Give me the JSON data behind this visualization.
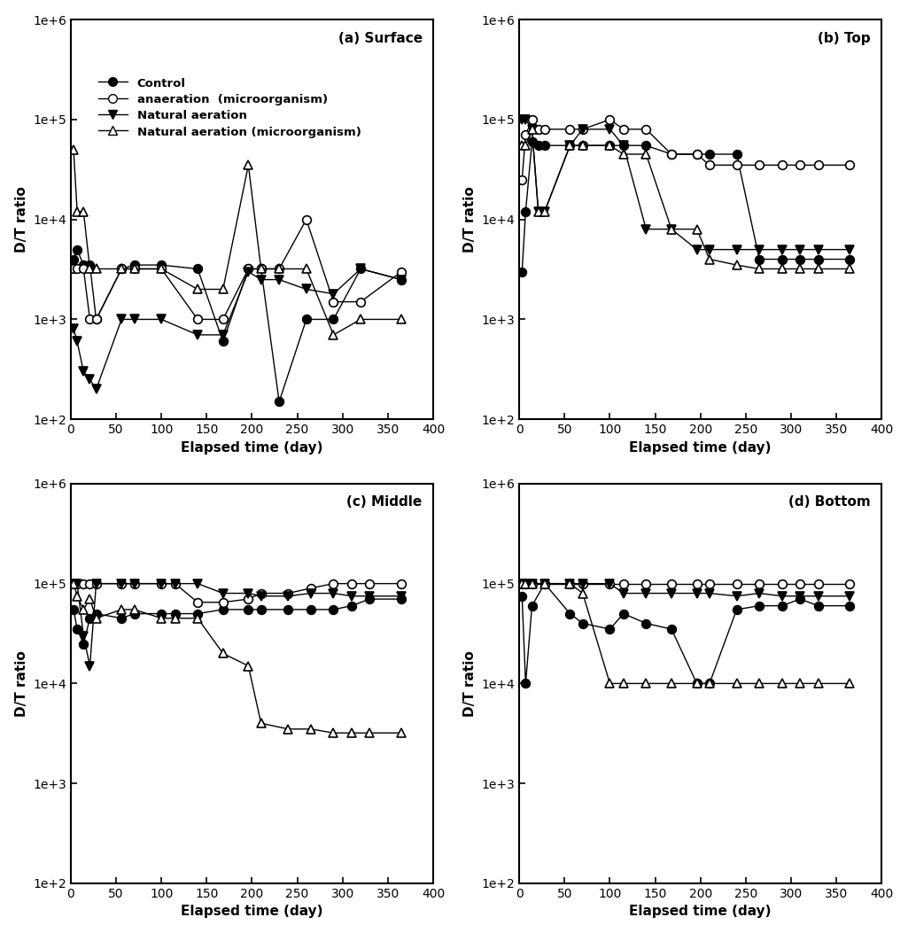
{
  "subplots": [
    {
      "label": "(a) Surface",
      "has_legend": true,
      "control": {
        "x": [
          3,
          7,
          14,
          21,
          28,
          56,
          70,
          100,
          140,
          168,
          196,
          210,
          230,
          260,
          290,
          320,
          365
        ],
        "y": [
          4000,
          5000,
          3500,
          3500,
          1000,
          3200,
          3500,
          3500,
          3200,
          600,
          3200,
          3200,
          150,
          1000,
          1000,
          3200,
          2500
        ]
      },
      "anaeration": {
        "x": [
          3,
          7,
          14,
          21,
          28,
          56,
          70,
          100,
          140,
          168,
          196,
          210,
          230,
          260,
          290,
          320,
          365
        ],
        "y": [
          3200,
          3200,
          3200,
          1000,
          1000,
          3200,
          3200,
          3200,
          1000,
          1000,
          3200,
          3200,
          3200,
          10000,
          1500,
          1500,
          3000
        ]
      },
      "natural": {
        "x": [
          3,
          7,
          14,
          21,
          28,
          56,
          70,
          100,
          140,
          168,
          196,
          210,
          230,
          260,
          290,
          320,
          365
        ],
        "y": [
          800,
          600,
          300,
          250,
          200,
          1000,
          1000,
          1000,
          700,
          700,
          3000,
          2500,
          2500,
          2000,
          1800,
          3200,
          2500
        ]
      },
      "natural_micro": {
        "x": [
          3,
          7,
          14,
          21,
          28,
          56,
          70,
          100,
          140,
          168,
          196,
          210,
          230,
          260,
          290,
          320,
          365
        ],
        "y": [
          50000,
          12000,
          12000,
          3200,
          3200,
          3200,
          3200,
          3200,
          2000,
          2000,
          35000,
          3200,
          3200,
          3200,
          700,
          1000,
          1000
        ]
      }
    },
    {
      "label": "(b) Top",
      "has_legend": false,
      "control": {
        "x": [
          3,
          7,
          14,
          21,
          28,
          56,
          70,
          100,
          115,
          140,
          168,
          196,
          210,
          240,
          265,
          290,
          310,
          330,
          365
        ],
        "y": [
          3000,
          12000,
          60000,
          55000,
          55000,
          55000,
          55000,
          55000,
          55000,
          55000,
          45000,
          45000,
          45000,
          45000,
          4000,
          4000,
          4000,
          4000,
          4000
        ]
      },
      "anaeration": {
        "x": [
          3,
          7,
          14,
          21,
          28,
          56,
          70,
          100,
          115,
          140,
          168,
          196,
          210,
          240,
          265,
          290,
          310,
          330,
          365
        ],
        "y": [
          25000,
          70000,
          100000,
          80000,
          80000,
          80000,
          80000,
          100000,
          80000,
          80000,
          45000,
          45000,
          35000,
          35000,
          35000,
          35000,
          35000,
          35000,
          35000
        ]
      },
      "natural": {
        "x": [
          3,
          7,
          14,
          21,
          28,
          56,
          70,
          100,
          115,
          140,
          168,
          196,
          210,
          240,
          265,
          290,
          310,
          330,
          365
        ],
        "y": [
          100000,
          100000,
          80000,
          12000,
          12000,
          55000,
          80000,
          80000,
          55000,
          8000,
          8000,
          5000,
          5000,
          5000,
          5000,
          5000,
          5000,
          5000,
          5000
        ]
      },
      "natural_micro": {
        "x": [
          3,
          7,
          14,
          21,
          28,
          56,
          70,
          100,
          115,
          140,
          168,
          196,
          210,
          240,
          265,
          290,
          310,
          330,
          365
        ],
        "y": [
          55000,
          55000,
          80000,
          12000,
          12000,
          55000,
          55000,
          55000,
          45000,
          45000,
          8000,
          8000,
          4000,
          3500,
          3200,
          3200,
          3200,
          3200,
          3200
        ]
      }
    },
    {
      "label": "(c) Middle",
      "has_legend": false,
      "control": {
        "x": [
          3,
          7,
          14,
          21,
          28,
          56,
          70,
          100,
          115,
          140,
          168,
          196,
          210,
          240,
          265,
          290,
          310,
          330,
          365
        ],
        "y": [
          55000,
          35000,
          25000,
          45000,
          50000,
          45000,
          50000,
          50000,
          50000,
          50000,
          55000,
          55000,
          55000,
          55000,
          55000,
          55000,
          60000,
          70000,
          70000
        ]
      },
      "anaeration": {
        "x": [
          3,
          7,
          14,
          21,
          28,
          56,
          70,
          100,
          115,
          140,
          168,
          196,
          210,
          240,
          265,
          290,
          310,
          330,
          365
        ],
        "y": [
          100000,
          100000,
          100000,
          100000,
          100000,
          100000,
          100000,
          100000,
          100000,
          65000,
          65000,
          70000,
          80000,
          80000,
          90000,
          100000,
          100000,
          100000,
          100000
        ]
      },
      "natural": {
        "x": [
          3,
          7,
          14,
          21,
          28,
          56,
          70,
          100,
          115,
          140,
          168,
          196,
          210,
          240,
          265,
          290,
          310,
          330,
          365
        ],
        "y": [
          100000,
          100000,
          30000,
          15000,
          100000,
          100000,
          100000,
          100000,
          100000,
          100000,
          80000,
          80000,
          75000,
          75000,
          80000,
          80000,
          75000,
          75000,
          75000
        ]
      },
      "natural_micro": {
        "x": [
          3,
          7,
          14,
          21,
          28,
          56,
          70,
          100,
          115,
          140,
          168,
          196,
          210,
          240,
          265,
          290,
          310,
          330,
          365
        ],
        "y": [
          100000,
          75000,
          55000,
          70000,
          45000,
          55000,
          55000,
          45000,
          45000,
          45000,
          20000,
          15000,
          4000,
          3500,
          3500,
          3200,
          3200,
          3200,
          3200
        ]
      }
    },
    {
      "label": "(d) Bottom",
      "has_legend": false,
      "control": {
        "x": [
          3,
          7,
          14,
          28,
          56,
          70,
          100,
          115,
          140,
          168,
          196,
          210,
          240,
          265,
          290,
          310,
          330,
          365
        ],
        "y": [
          75000,
          10000,
          60000,
          100000,
          50000,
          40000,
          35000,
          50000,
          40000,
          35000,
          10000,
          10000,
          55000,
          60000,
          60000,
          70000,
          60000,
          60000
        ]
      },
      "anaeration": {
        "x": [
          3,
          7,
          14,
          28,
          56,
          70,
          100,
          115,
          140,
          168,
          196,
          210,
          240,
          265,
          290,
          310,
          330,
          365
        ],
        "y": [
          100000,
          100000,
          100000,
          100000,
          100000,
          100000,
          100000,
          100000,
          100000,
          100000,
          100000,
          100000,
          100000,
          100000,
          100000,
          100000,
          100000,
          100000
        ]
      },
      "natural": {
        "x": [
          3,
          7,
          14,
          28,
          56,
          70,
          100,
          115,
          140,
          168,
          196,
          210,
          240,
          265,
          290,
          310,
          330,
          365
        ],
        "y": [
          100000,
          100000,
          100000,
          100000,
          100000,
          100000,
          100000,
          80000,
          80000,
          80000,
          80000,
          80000,
          75000,
          80000,
          75000,
          75000,
          75000,
          75000
        ]
      },
      "natural_micro": {
        "x": [
          3,
          7,
          14,
          28,
          56,
          70,
          100,
          115,
          140,
          168,
          196,
          210,
          240,
          265,
          290,
          310,
          330,
          365
        ],
        "y": [
          100000,
          100000,
          100000,
          100000,
          100000,
          80000,
          10000,
          10000,
          10000,
          10000,
          10000,
          10000,
          10000,
          10000,
          10000,
          10000,
          10000,
          10000
        ]
      }
    }
  ],
  "legend_labels": [
    "Control",
    "anaeration  (microorganism)",
    "Natural aeration",
    "Natural aeration (microorganism)"
  ],
  "xlabel": "Elapsed time (day)",
  "ylabel": "D/T ratio",
  "ylim_log": [
    100,
    1000000
  ],
  "xlim": [
    0,
    400
  ],
  "xticks": [
    0,
    50,
    100,
    150,
    200,
    250,
    300,
    350,
    400
  ],
  "background_color": "#ffffff"
}
